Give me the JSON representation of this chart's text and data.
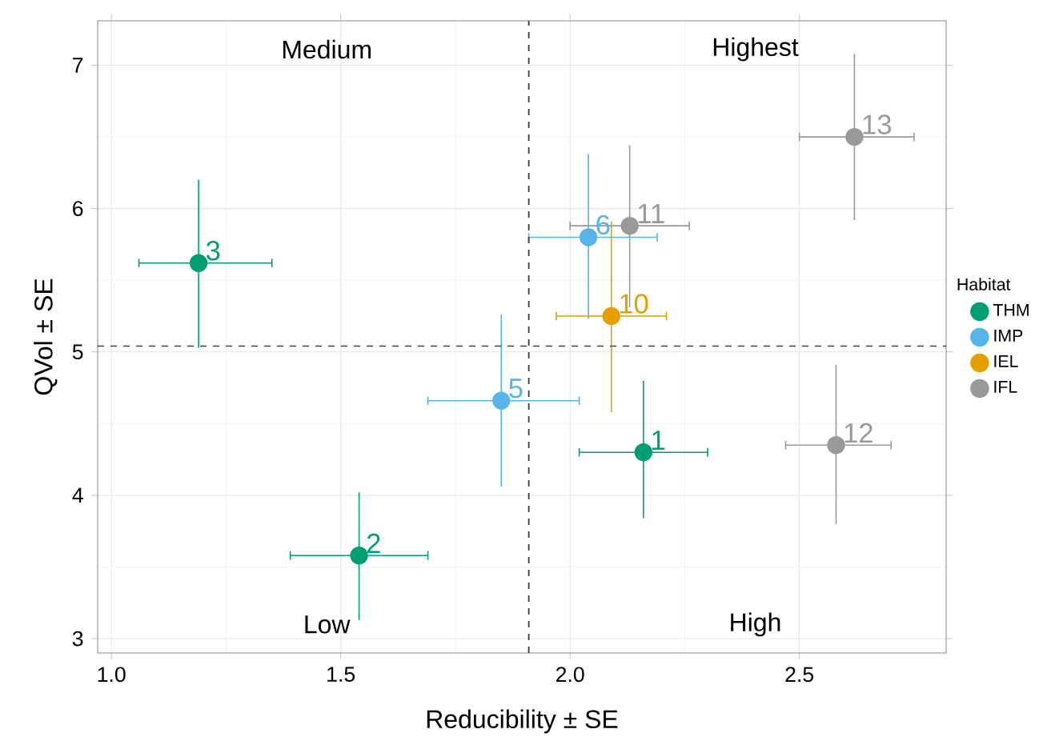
{
  "chart_data": {
    "type": "scatter",
    "xlabel": "Reducibility ± SE",
    "ylabel": "QVol ± SE",
    "legend_title": "Habitat",
    "xlim": [
      0.97,
      2.82
    ],
    "ylim": [
      2.9,
      7.31
    ],
    "xticks": [
      {
        "value": 1,
        "label": "1.0"
      },
      {
        "value": 1.5,
        "label": "1.5"
      },
      {
        "value": 2,
        "label": "2.0"
      },
      {
        "value": 2.5,
        "label": "2.5"
      }
    ],
    "yticks": [
      3,
      4,
      5,
      6,
      7
    ],
    "grid": true,
    "legend": "right",
    "marker": "circle",
    "series": [
      {
        "name": "THM",
        "color": "#009e73",
        "x": [
          2.16,
          1.54,
          1.19
        ],
        "values": [
          4.3,
          3.58,
          5.62
        ],
        "xerrors": [
          [
            2.02,
            2.3
          ],
          [
            1.39,
            1.69
          ],
          [
            1.06,
            1.35
          ]
        ],
        "errors": [
          [
            3.84,
            4.8
          ],
          [
            3.13,
            4.02
          ],
          [
            5.03,
            6.2
          ]
        ]
      },
      {
        "name": "IMP",
        "color": "#56b4e9",
        "x": [
          1.85,
          2.04
        ],
        "values": [
          4.66,
          5.8
        ],
        "xerrors": [
          [
            1.69,
            2.02
          ],
          [
            1.91,
            2.19
          ]
        ],
        "errors": [
          [
            4.06,
            5.26
          ],
          [
            5.23,
            6.38
          ]
        ]
      },
      {
        "name": "IEL",
        "color": "#e69f00",
        "x": [
          2.09
        ],
        "values": [
          5.25
        ],
        "xerrors": [
          [
            1.97,
            2.21
          ]
        ],
        "errors": [
          [
            4.58,
            5.91
          ]
        ]
      },
      {
        "name": "IFL",
        "color": "#999999",
        "x": [
          2.13,
          2.58,
          2.62
        ],
        "values": [
          5.88,
          4.35,
          6.5
        ],
        "xerrors": [
          [
            2.0,
            2.26
          ],
          [
            2.47,
            2.7
          ],
          [
            2.5,
            2.75
          ]
        ],
        "errors": [
          [
            5.31,
            6.44
          ],
          [
            3.8,
            4.91
          ],
          [
            5.92,
            7.08
          ]
        ]
      }
    ],
    "ref_lines": [
      {
        "axis": "x",
        "value": 1.91,
        "line_style": "dashed"
      },
      {
        "axis": "y",
        "value": 5.04,
        "line_style": "dashed"
      }
    ],
    "annotations": [
      "Medium",
      "Highest",
      "Low",
      "High",
      {
        "text": "1",
        "x": 2.16,
        "y": 4.3
      },
      {
        "text": "2",
        "x": 1.54,
        "y": 3.58
      },
      {
        "text": "3",
        "x": 1.19,
        "y": 5.62
      },
      {
        "text": "5",
        "x": 1.85,
        "y": 4.66
      },
      {
        "text": "6",
        "x": 2.04,
        "y": 5.8
      },
      {
        "text": "10",
        "x": 2.09,
        "y": 5.25
      },
      {
        "text": "11",
        "x": 2.13,
        "y": 5.88
      },
      {
        "text": "12",
        "x": 2.58,
        "y": 4.35
      },
      {
        "text": "13",
        "x": 2.62,
        "y": 6.5
      }
    ]
  }
}
